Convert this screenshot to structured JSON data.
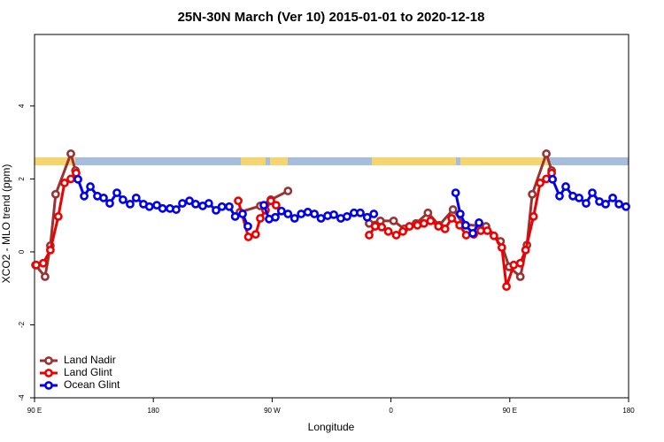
{
  "chart_data": {
    "type": "line",
    "title": "25N-30N March (Ver 10)   2015-01-01 to 2020-12-18",
    "x_label": "Longitude",
    "y_label": "XCO2 - MLO trend (ppm)",
    "xlim": [
      90,
      540
    ],
    "ylim": [
      -4,
      5.96
    ],
    "xticks": [
      {
        "value": 90,
        "label": "90 E"
      },
      180,
      {
        "value": 270,
        "label": "90 W"
      },
      {
        "value": 360,
        "label": "0"
      },
      {
        "value": 450,
        "label": "90 E"
      },
      {
        "value": 540,
        "label": "180"
      }
    ],
    "yticks": [
      -4,
      -2,
      0,
      2,
      4
    ],
    "grid": false,
    "legend": "bottom-left",
    "series": [
      {
        "name": "Land Nadir",
        "color": "#993333",
        "x": [
          90.7,
          98,
          102,
          106,
          117.5,
          121,
          null,
          245.6,
          261,
          269,
          282,
          null,
          343.5,
          352,
          362,
          370,
          379,
          388,
          396.5,
          407,
          415,
          432,
          443,
          449.5,
          458,
          463,
          467,
          477.7,
          481.7
        ],
        "values": [
          -0.36,
          -0.68,
          0.17,
          1.58,
          2.69,
          2.23,
          null,
          1.09,
          1.26,
          1.43,
          1.67,
          null,
          0.78,
          0.85,
          0.85,
          0.63,
          0.78,
          1.07,
          0.73,
          1.16,
          0.75,
          0.7,
          0.29,
          -0.41,
          -0.68,
          0.19,
          1.58,
          2.69,
          2.23
        ]
      },
      {
        "name": "Land Glint",
        "color": "#ee0000",
        "x": [
          91.3,
          96.6,
          102,
          108,
          112.7,
          117.5,
          121.5,
          null,
          244.3,
          252,
          257.5,
          261,
          265,
          269,
          273,
          null,
          343.5,
          348,
          353,
          358,
          364,
          369,
          374,
          380,
          385,
          390,
          396,
          401,
          406,
          412,
          417,
          422.7,
          428,
          433,
          438,
          444,
          447.5,
          453,
          458,
          462,
          468,
          473,
          477.7,
          481.7
        ],
        "values": [
          -0.36,
          -0.31,
          0.05,
          0.97,
          1.89,
          2.0,
          2.16,
          null,
          1.4,
          0.41,
          0.48,
          0.92,
          1.14,
          1.4,
          1.28,
          null,
          0.46,
          0.7,
          0.68,
          0.56,
          0.46,
          0.56,
          0.7,
          0.73,
          0.78,
          0.85,
          0.7,
          0.63,
          0.92,
          0.73,
          0.46,
          0.48,
          0.58,
          0.58,
          0.44,
          0.12,
          -0.95,
          -0.36,
          -0.31,
          0.05,
          0.97,
          1.89,
          2.0,
          2.16
        ]
      },
      {
        "name": "Ocean Glint",
        "color": "#0000ee",
        "x": [
          122.9,
          127.6,
          132.3,
          137.6,
          142.3,
          147,
          152.4,
          157,
          162.4,
          167,
          172.5,
          177,
          182.6,
          187,
          192.6,
          197.3,
          202,
          207.4,
          212,
          217.4,
          222,
          227.5,
          232,
          237.5,
          242,
          247.6,
          251.6,
          null,
          263.7,
          267.7,
          272.4,
          277,
          282,
          287,
          292,
          297,
          302,
          307,
          312,
          316.7,
          322,
          326.7,
          332,
          336.8,
          342,
          347,
          null,
          409,
          412.5,
          416.6,
          422,
          426.7,
          null,
          482.4,
          487.7,
          492.4,
          497.8,
          502.5,
          507.8,
          512.5,
          517.9,
          522.6,
          528,
          532.7,
          538
        ],
        "values": [
          1.99,
          1.53,
          1.79,
          1.53,
          1.48,
          1.33,
          1.62,
          1.43,
          1.31,
          1.48,
          1.31,
          1.24,
          1.28,
          1.19,
          1.19,
          1.16,
          1.33,
          1.4,
          1.31,
          1.26,
          1.33,
          1.14,
          1.24,
          1.24,
          0.97,
          1.04,
          0.7,
          null,
          1.28,
          0.9,
          0.95,
          1.12,
          1.04,
          0.92,
          1.04,
          1.09,
          1.04,
          0.92,
          0.99,
          1.02,
          0.92,
          0.97,
          1.07,
          1.07,
          0.95,
          1.04,
          null,
          1.62,
          1.04,
          0.73,
          0.51,
          0.8,
          null,
          1.99,
          1.53,
          1.79,
          1.53,
          1.48,
          1.33,
          1.62,
          1.38,
          1.31,
          1.48,
          1.31,
          1.24
        ]
      }
    ]
  }
}
